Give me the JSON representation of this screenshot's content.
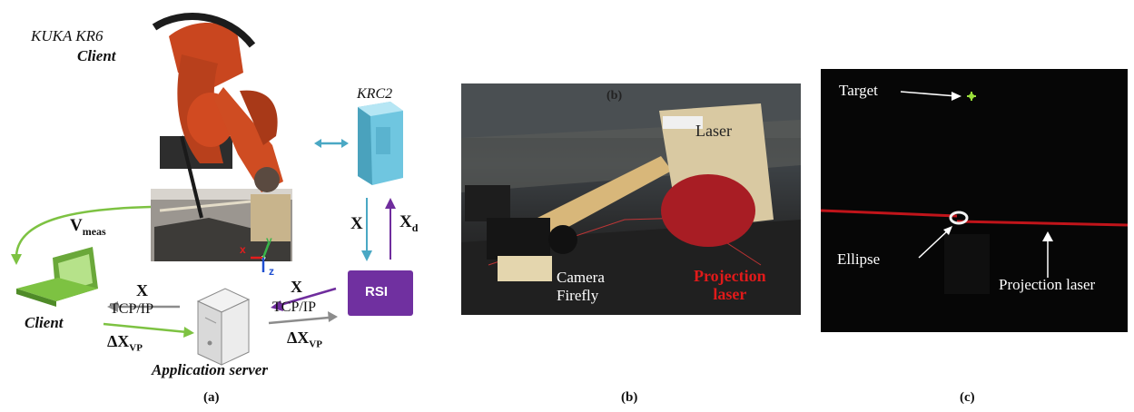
{
  "panel_a": {
    "robot_title": "KUKA KR6",
    "robot_subtitle": "Client",
    "controller": "KRC2",
    "rsi": "RSI",
    "x_down": "X",
    "xd_up": "X",
    "xd_sub": "d",
    "vmeas_main": "V",
    "vmeas_sub": "meas",
    "client": "Client",
    "app_server": "Application server",
    "left_link": {
      "x": "X",
      "protocol": "TCP/IP",
      "dx_main": "ΔX",
      "dx_sub": "VP"
    },
    "right_link": {
      "x": "X",
      "protocol": "TCP/IP",
      "dx_main": "ΔX",
      "dx_sub": "VP"
    },
    "axes": {
      "x": "x",
      "y": "y",
      "z": "z"
    },
    "colors": {
      "robot": "#c9461f",
      "cyan_arrow": "#4aa8c4",
      "purple": "#6f2d9d",
      "green": "#7dc242",
      "gray": "#8c8c8c"
    }
  },
  "panel_b": {
    "tag": "(b)",
    "laser": "Laser",
    "camera_line1": "Camera",
    "camera_line2": "Firefly",
    "projection_line1": "Projection",
    "projection_line2": "laser",
    "colors": {
      "projection": "#e01a1a"
    }
  },
  "panel_c": {
    "target": "Target",
    "ellipse": "Ellipse",
    "projection_laser": "Projection laser",
    "colors": {
      "target": "#9adf3a",
      "laser": "#c0141a"
    }
  },
  "captions": [
    "(a)",
    "(b)",
    "(c)"
  ]
}
